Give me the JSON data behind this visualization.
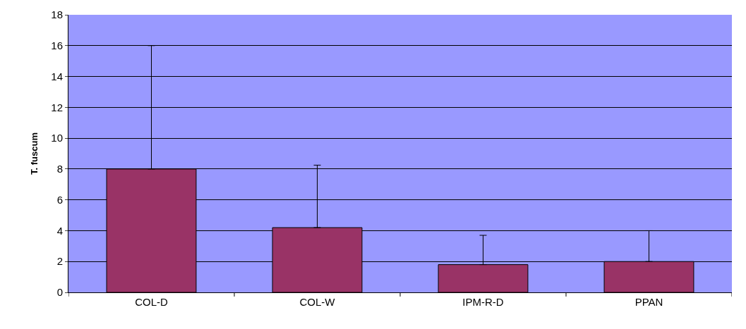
{
  "chart_data": {
    "type": "bar",
    "ylabel": "T. fuscum",
    "categories": [
      "COL-D",
      "COL-W",
      "IPM-R-D",
      "PPAN"
    ],
    "values": [
      8.0,
      4.2,
      1.8,
      2.0
    ],
    "errors": [
      [
        8.0,
        16.0
      ],
      [
        4.2,
        8.25
      ],
      [
        1.8,
        3.7
      ],
      [
        2.0,
        4.0
      ]
    ],
    "color": "#993366",
    "ylim": [
      0,
      18
    ],
    "yticks": [
      0,
      2,
      4,
      6,
      8,
      10,
      12,
      14,
      16,
      18
    ],
    "grid": "y",
    "legend": false
  }
}
